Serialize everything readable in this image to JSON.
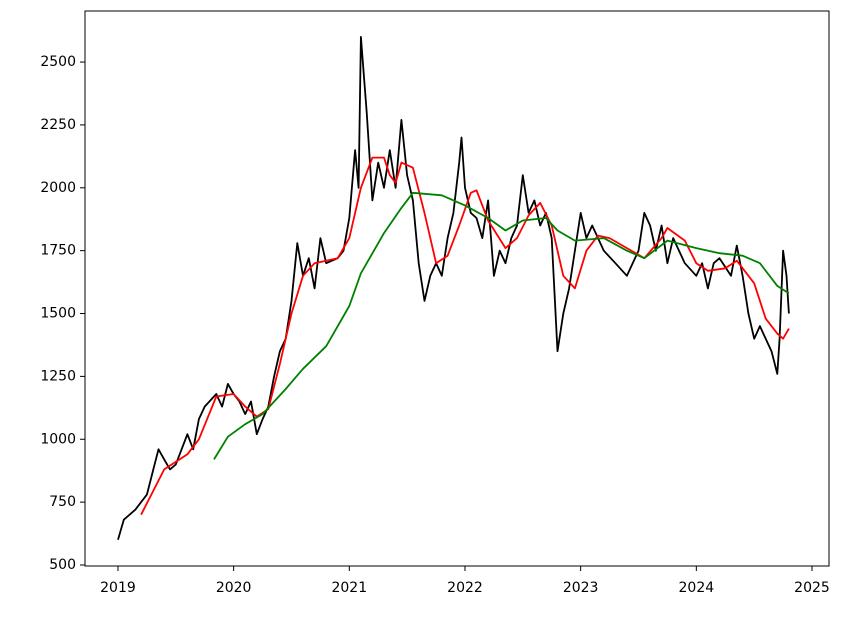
{
  "chart_data": {
    "type": "line",
    "xlim": [
      2018.715,
      2025.147
    ],
    "xticks": [
      2019,
      2020,
      2021,
      2022,
      2023,
      2024,
      2025
    ],
    "ylim": [
      496,
      2703
    ],
    "yticks": [
      500,
      750,
      1000,
      1250,
      1500,
      1750,
      2000,
      2250,
      2500
    ],
    "grid": false,
    "series": [
      {
        "color": "#000000",
        "x": [
          2019.0,
          2019.05,
          2019.15,
          2019.25,
          2019.3,
          2019.35,
          2019.4,
          2019.45,
          2019.5,
          2019.6,
          2019.65,
          2019.7,
          2019.75,
          2019.85,
          2019.9,
          2019.95,
          2020.0,
          2020.05,
          2020.1,
          2020.15,
          2020.2,
          2020.25,
          2020.3,
          2020.35,
          2020.4,
          2020.45,
          2020.5,
          2020.55,
          2020.6,
          2020.65,
          2020.7,
          2020.75,
          2020.8,
          2020.9,
          2020.95,
          2021.0,
          2021.05,
          2021.08,
          2021.1,
          2021.15,
          2021.2,
          2021.25,
          2021.3,
          2021.35,
          2021.4,
          2021.45,
          2021.5,
          2021.55,
          2021.6,
          2021.65,
          2021.7,
          2021.75,
          2021.8,
          2021.85,
          2021.9,
          2021.95,
          2021.97,
          2022.0,
          2022.05,
          2022.1,
          2022.15,
          2022.2,
          2022.25,
          2022.3,
          2022.35,
          2022.4,
          2022.45,
          2022.5,
          2022.55,
          2022.6,
          2022.65,
          2022.7,
          2022.75,
          2022.8,
          2022.85,
          2022.9,
          2022.95,
          2023.0,
          2023.05,
          2023.1,
          2023.2,
          2023.3,
          2023.4,
          2023.5,
          2023.55,
          2023.6,
          2023.65,
          2023.7,
          2023.75,
          2023.8,
          2023.9,
          2024.0,
          2024.05,
          2024.1,
          2024.15,
          2024.2,
          2024.3,
          2024.35,
          2024.4,
          2024.45,
          2024.5,
          2024.55,
          2024.6,
          2024.65,
          2024.7,
          2024.72,
          2024.75,
          2024.78,
          2024.8
        ],
        "values": [
          600,
          680,
          720,
          780,
          870,
          960,
          920,
          880,
          900,
          1020,
          960,
          1080,
          1130,
          1180,
          1130,
          1220,
          1180,
          1150,
          1100,
          1150,
          1020,
          1080,
          1130,
          1250,
          1350,
          1400,
          1550,
          1780,
          1650,
          1720,
          1600,
          1800,
          1700,
          1720,
          1750,
          1880,
          2150,
          2000,
          2600,
          2300,
          1950,
          2100,
          2000,
          2150,
          2000,
          2270,
          2050,
          1950,
          1700,
          1550,
          1650,
          1700,
          1650,
          1800,
          1900,
          2100,
          2200,
          2000,
          1900,
          1880,
          1800,
          1950,
          1650,
          1750,
          1700,
          1800,
          1850,
          2050,
          1900,
          1950,
          1850,
          1900,
          1800,
          1350,
          1500,
          1600,
          1750,
          1900,
          1800,
          1850,
          1750,
          1700,
          1650,
          1750,
          1900,
          1850,
          1750,
          1850,
          1700,
          1800,
          1700,
          1650,
          1700,
          1600,
          1700,
          1720,
          1650,
          1770,
          1650,
          1500,
          1400,
          1450,
          1400,
          1350,
          1260,
          1400,
          1750,
          1650,
          1500
        ]
      },
      {
        "color": "#ff0000",
        "x": [
          2019.2,
          2019.4,
          2019.6,
          2019.7,
          2019.85,
          2020.0,
          2020.1,
          2020.2,
          2020.3,
          2020.4,
          2020.5,
          2020.6,
          2020.7,
          2020.9,
          2021.0,
          2021.1,
          2021.2,
          2021.3,
          2021.35,
          2021.4,
          2021.45,
          2021.55,
          2021.65,
          2021.75,
          2021.85,
          2021.95,
          2022.05,
          2022.1,
          2022.2,
          2022.35,
          2022.45,
          2022.55,
          2022.65,
          2022.75,
          2022.85,
          2022.95,
          2023.05,
          2023.15,
          2023.25,
          2023.4,
          2023.55,
          2023.7,
          2023.75,
          2023.9,
          2024.0,
          2024.1,
          2024.25,
          2024.35,
          2024.5,
          2024.6,
          2024.7,
          2024.75,
          2024.8
        ],
        "values": [
          700,
          880,
          940,
          1000,
          1170,
          1180,
          1130,
          1090,
          1120,
          1300,
          1500,
          1650,
          1700,
          1720,
          1800,
          2000,
          2120,
          2120,
          2050,
          2020,
          2100,
          2080,
          1900,
          1700,
          1730,
          1850,
          1980,
          1990,
          1870,
          1760,
          1800,
          1890,
          1940,
          1850,
          1650,
          1600,
          1750,
          1810,
          1800,
          1760,
          1720,
          1800,
          1840,
          1790,
          1700,
          1670,
          1680,
          1710,
          1620,
          1480,
          1420,
          1400,
          1440
        ]
      },
      {
        "color": "#008000",
        "x": [
          2019.83,
          2019.95,
          2020.1,
          2020.25,
          2020.45,
          2020.6,
          2020.8,
          2021.0,
          2021.1,
          2021.3,
          2021.45,
          2021.55,
          2021.8,
          2022.0,
          2022.2,
          2022.35,
          2022.5,
          2022.7,
          2022.8,
          2022.95,
          2023.2,
          2023.4,
          2023.55,
          2023.75,
          2024.0,
          2024.2,
          2024.4,
          2024.55,
          2024.7,
          2024.8
        ],
        "values": [
          920,
          1010,
          1060,
          1100,
          1200,
          1280,
          1370,
          1530,
          1660,
          1820,
          1920,
          1980,
          1970,
          1930,
          1880,
          1830,
          1870,
          1880,
          1830,
          1790,
          1800,
          1750,
          1720,
          1790,
          1760,
          1740,
          1730,
          1700,
          1610,
          1580
        ]
      }
    ]
  }
}
